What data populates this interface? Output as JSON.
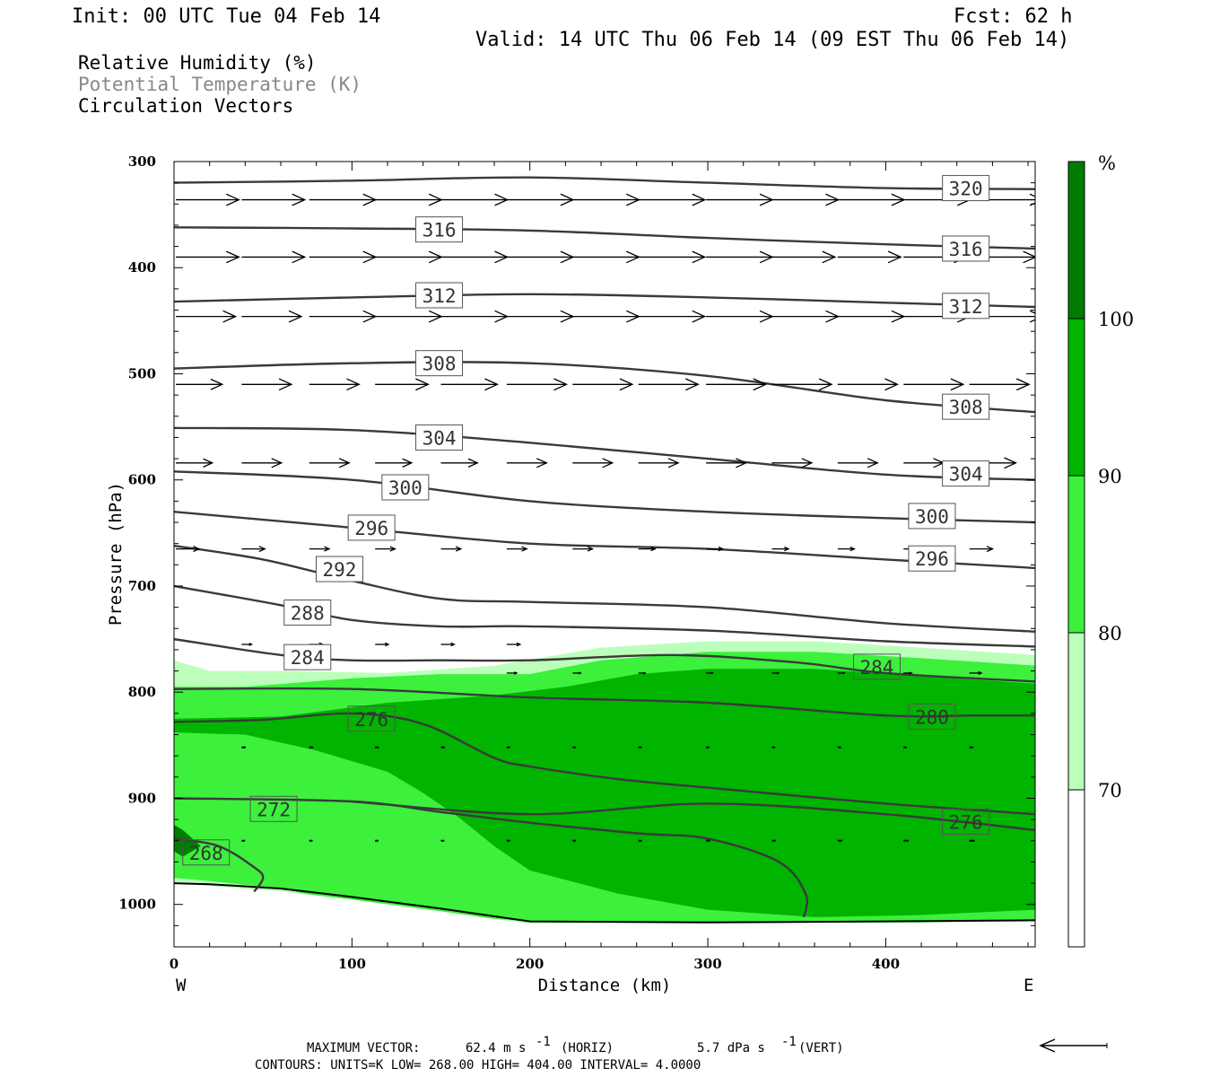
{
  "header": {
    "init": "Init: 00 UTC Tue 04 Feb 14",
    "fcst": "Fcst:   62 h",
    "valid": "Valid: 14 UTC Thu 06 Feb 14 (09 EST Thu 06 Feb 14)"
  },
  "legend": {
    "rh": "Relative Humidity (%)",
    "theta": "Potential Temperature (K)",
    "vectors": "Circulation Vectors"
  },
  "footer": {
    "max_vector_label": "MAXIMUM VECTOR:",
    "max_vector_horiz": "62.4 m s",
    "horiz_tag": "(HORIZ)",
    "max_vector_vert": "5.7 dPa s",
    "vert_tag": "(VERT)",
    "exponent": "-1",
    "contours": "CONTOURS:  UNITS=K  LOW=   268.00       HIGH=  404.00       INTERVAL=     4.0000"
  },
  "colorbar": {
    "unit": "%",
    "levels": [
      "100",
      "90",
      "80",
      "70"
    ],
    "colors": [
      "#007d00",
      "#00b400",
      "#3cf03c",
      "#bbffbb",
      "#ffffff"
    ]
  },
  "chart_data": {
    "type": "cross-section",
    "xlabel": "Distance (km)",
    "ylabel": "Pressure (hPa)",
    "xlim": [
      0,
      484
    ],
    "ylim": [
      1040,
      300
    ],
    "x_ticks": [
      "0",
      "100",
      "200",
      "300",
      "400"
    ],
    "y_ticks": [
      "300",
      "400",
      "500",
      "600",
      "700",
      "800",
      "900",
      "1000"
    ],
    "x_end_labels": {
      "left": "W",
      "right": "E"
    },
    "rh_fills": [
      {
        "level": 70,
        "color": "#bbffbb",
        "x": [
          0,
          20,
          60,
          120,
          180,
          240,
          300,
          360,
          420,
          484,
          484,
          420,
          300,
          200,
          120,
          60,
          0
        ],
        "p": [
          770,
          780,
          780,
          782,
          775,
          758,
          752,
          752,
          758,
          765,
          1015,
          1017,
          1017,
          1018,
          1010,
          988,
          980
        ]
      },
      {
        "level": 80,
        "color": "#3cf03c",
        "x": [
          0,
          40,
          100,
          150,
          200,
          240,
          300,
          360,
          420,
          484,
          484,
          420,
          300,
          200,
          150,
          100,
          60,
          20,
          0
        ],
        "p": [
          795,
          795,
          787,
          783,
          783,
          770,
          762,
          762,
          768,
          775,
          1015,
          1017,
          1017,
          1016,
          1010,
          1000,
          985,
          978,
          975
        ]
      },
      {
        "level": 90,
        "color": "#00b400",
        "x": [
          0,
          60,
          120,
          180,
          220,
          260,
          300,
          360,
          420,
          484,
          484,
          420,
          360,
          300,
          250,
          200,
          180,
          160,
          140,
          120,
          80,
          40,
          0
        ],
        "p": [
          825,
          823,
          810,
          803,
          795,
          783,
          778,
          778,
          785,
          792,
          1005,
          1010,
          1012,
          1005,
          990,
          968,
          945,
          918,
          895,
          875,
          855,
          840,
          838
        ]
      },
      {
        "level": 100,
        "color": "#007d00",
        "x": [
          0,
          5,
          15,
          5,
          0
        ],
        "p": [
          925,
          930,
          945,
          955,
          950
        ]
      }
    ],
    "theta_contours": [
      {
        "value": 320,
        "x": [
          0,
          100,
          200,
          300,
          400,
          484
        ],
        "p": [
          320,
          318,
          315,
          320,
          325,
          326
        ]
      },
      {
        "value": 316,
        "x": [
          0,
          100,
          200,
          300,
          400,
          484
        ],
        "p": [
          362,
          363,
          365,
          372,
          378,
          382
        ]
      },
      {
        "value": 312,
        "x": [
          0,
          100,
          200,
          300,
          400,
          484
        ],
        "p": [
          432,
          428,
          425,
          428,
          433,
          437
        ]
      },
      {
        "value": 308,
        "x": [
          0,
          100,
          200,
          300,
          400,
          484
        ],
        "p": [
          495,
          490,
          490,
          502,
          525,
          536
        ]
      },
      {
        "value": 304,
        "x": [
          0,
          100,
          200,
          300,
          400,
          484
        ],
        "p": [
          551,
          553,
          565,
          580,
          595,
          600
        ]
      },
      {
        "value": 300,
        "x": [
          0,
          100,
          200,
          300,
          400,
          484
        ],
        "p": [
          592,
          600,
          620,
          630,
          636,
          640
        ]
      },
      {
        "value": 296,
        "x": [
          0,
          100,
          200,
          300,
          400,
          484
        ],
        "p": [
          630,
          645,
          660,
          665,
          675,
          683
        ]
      },
      {
        "value": 292,
        "x": [
          0,
          50,
          100,
          150,
          200,
          300,
          400,
          484
        ],
        "p": [
          662,
          675,
          695,
          712,
          715,
          720,
          735,
          743
        ]
      },
      {
        "value": 288,
        "x": [
          0,
          60,
          100,
          150,
          200,
          300,
          400,
          484
        ],
        "p": [
          700,
          718,
          732,
          738,
          738,
          742,
          752,
          757
        ]
      },
      {
        "value": 284,
        "x": [
          0,
          60,
          100,
          150,
          200,
          280,
          350,
          400,
          484
        ],
        "p": [
          750,
          765,
          770,
          770,
          770,
          765,
          772,
          782,
          790
        ]
      },
      {
        "value": 280,
        "x": [
          0,
          100,
          200,
          300,
          400,
          450,
          484
        ],
        "p": [
          797,
          797,
          805,
          810,
          822,
          822,
          822
        ]
      },
      {
        "value": 276,
        "x": [
          0,
          50,
          100,
          140,
          180,
          200,
          250,
          300,
          400,
          484
        ],
        "p": [
          828,
          826,
          820,
          830,
          862,
          870,
          882,
          890,
          905,
          915
        ]
      },
      {
        "value": 272,
        "x": [
          0,
          100,
          150,
          200,
          260,
          300,
          340,
          355,
          354
        ],
        "p": [
          900,
          903,
          913,
          923,
          933,
          938,
          960,
          990,
          1012
        ]
      },
      {
        "value": 272,
        "x": [
          100,
          200,
          300,
          400,
          484
        ],
        "p": [
          903,
          915,
          905,
          915,
          930
        ]
      },
      {
        "value": 268,
        "x": [
          0,
          25,
          45,
          50,
          45
        ],
        "p": [
          938,
          945,
          965,
          975,
          988
        ]
      }
    ],
    "contour_labels": [
      {
        "text": "320",
        "x": 445,
        "p": 325
      },
      {
        "text": "316",
        "x": 149,
        "p": 364
      },
      {
        "text": "316",
        "x": 445,
        "p": 382
      },
      {
        "text": "312",
        "x": 149,
        "p": 426
      },
      {
        "text": "312",
        "x": 445,
        "p": 436
      },
      {
        "text": "308",
        "x": 149,
        "p": 490
      },
      {
        "text": "308",
        "x": 445,
        "p": 531
      },
      {
        "text": "304",
        "x": 149,
        "p": 560
      },
      {
        "text": "304",
        "x": 445,
        "p": 594
      },
      {
        "text": "300",
        "x": 130,
        "p": 607
      },
      {
        "text": "300",
        "x": 426,
        "p": 634
      },
      {
        "text": "296",
        "x": 111,
        "p": 645
      },
      {
        "text": "296",
        "x": 426,
        "p": 674
      },
      {
        "text": "292",
        "x": 93,
        "p": 684
      },
      {
        "text": "288",
        "x": 75,
        "p": 725
      },
      {
        "text": "284",
        "x": 75,
        "p": 767
      },
      {
        "text": "284",
        "x": 395,
        "p": 776
      },
      {
        "text": "280",
        "x": 426,
        "p": 823
      },
      {
        "text": "276",
        "x": 111,
        "p": 825
      },
      {
        "text": "276",
        "x": 445,
        "p": 922
      },
      {
        "text": "272",
        "x": 56,
        "p": 910
      },
      {
        "text": "268",
        "x": 18,
        "p": 951
      }
    ],
    "vectors": {
      "note": "horizontal circulation vectors, lengths in fraction of reference arrow",
      "rows": [
        {
          "p": 336,
          "x": [
            0,
            37,
            75,
            112,
            149,
            186,
            223,
            260,
            298,
            335,
            372,
            409,
            446
          ],
          "u": [
            0.95,
            0.95,
            1.0,
            1.0,
            1.0,
            1.0,
            1.0,
            1.0,
            1.0,
            1.0,
            1.0,
            1.0,
            1.1
          ]
        },
        {
          "p": 390,
          "x": [
            0,
            37,
            75,
            112,
            149,
            186,
            223,
            260,
            298,
            335,
            372,
            409,
            446
          ],
          "u": [
            0.95,
            0.95,
            1.0,
            1.0,
            1.0,
            1.0,
            1.0,
            1.0,
            1.0,
            0.95,
            0.95,
            0.95,
            1.0
          ]
        },
        {
          "p": 446,
          "x": [
            0,
            37,
            75,
            112,
            149,
            186,
            223,
            260,
            298,
            335,
            372,
            409,
            446
          ],
          "u": [
            0.9,
            0.9,
            1.0,
            1.0,
            1.0,
            1.0,
            1.0,
            1.0,
            1.0,
            1.0,
            1.0,
            1.0,
            1.1
          ]
        },
        {
          "p": 510,
          "x": [
            0,
            37,
            75,
            112,
            149,
            186,
            223,
            260,
            298,
            335,
            372,
            409,
            446
          ],
          "u": [
            0.7,
            0.75,
            0.75,
            0.8,
            0.85,
            0.9,
            0.9,
            0.9,
            0.9,
            0.9,
            0.9,
            0.9,
            0.9
          ]
        },
        {
          "p": 584,
          "x": [
            0,
            37,
            75,
            112,
            149,
            186,
            223,
            260,
            298,
            335,
            372,
            409,
            446
          ],
          "u": [
            0.55,
            0.6,
            0.6,
            0.55,
            0.55,
            0.6,
            0.6,
            0.6,
            0.6,
            0.6,
            0.6,
            0.6,
            0.7
          ]
        },
        {
          "p": 665,
          "x": [
            0,
            37,
            75,
            112,
            149,
            186,
            223,
            260,
            298,
            335,
            372,
            409,
            446
          ],
          "u": [
            0.35,
            0.35,
            0.3,
            0.3,
            0.3,
            0.3,
            0.3,
            0.25,
            0.25,
            0.25,
            0.25,
            0.3,
            0.35
          ]
        },
        {
          "p": 755,
          "x": [
            37,
            75,
            112,
            149,
            186
          ],
          "u": [
            0.15,
            0.2,
            0.2,
            0.2,
            0.2
          ]
        },
        {
          "p": 782,
          "x": [
            186,
            223,
            260,
            298,
            335,
            372,
            409,
            446
          ],
          "u": [
            0.15,
            0.12,
            0.1,
            0.1,
            0.1,
            0.1,
            0.12,
            0.18
          ]
        },
        {
          "p": 852,
          "x": [
            37,
            75,
            112,
            149,
            186,
            223,
            260,
            298,
            335,
            372,
            409,
            446
          ],
          "u": [
            0.06,
            0.06,
            0.06,
            0.06,
            0.05,
            0.05,
            0.05,
            0.05,
            0.05,
            0.05,
            0.05,
            0.06
          ]
        },
        {
          "p": 940,
          "x": [
            37,
            75,
            112,
            149,
            186,
            223,
            260,
            298,
            335,
            372,
            409,
            446,
            484
          ],
          "u": [
            0.05,
            0.05,
            0.05,
            0.05,
            0.05,
            0.05,
            0.05,
            0.06,
            0.06,
            0.07,
            0.08,
            0.08,
            0.08
          ]
        }
      ]
    }
  }
}
